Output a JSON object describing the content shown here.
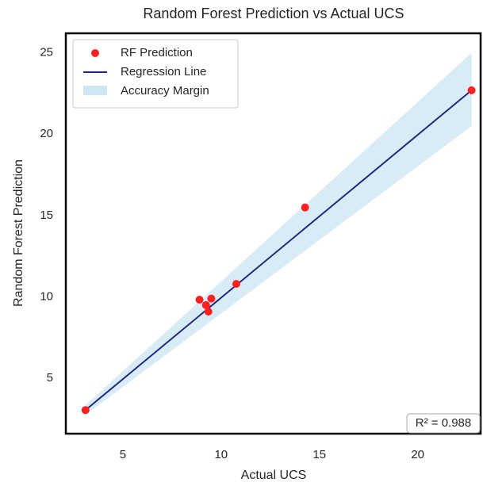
{
  "chart_data": {
    "type": "scatter",
    "title": "Random Forest Prediction vs Actual UCS",
    "xlabel": "Actual UCS",
    "ylabel": "Random Forest Prediction",
    "x": [
      3.1,
      8.9,
      9.23,
      9.35,
      9.5,
      10.77,
      14.27,
      22.74
    ],
    "series": [
      {
        "name": "RF Prediction",
        "color": "#ff2121",
        "values": [
          3.05,
          9.83,
          9.5,
          9.1,
          9.9,
          10.8,
          15.5,
          22.7
        ]
      }
    ],
    "regression": {
      "name": "Regression Line",
      "color": "#1f2a80",
      "x": [
        3.1,
        22.74
      ],
      "values": [
        3.05,
        22.7
      ]
    },
    "band": {
      "name": "Accuracy Margin",
      "color": "#cfe7f3",
      "x": [
        3.1,
        22.74
      ],
      "upper": [
        3.35,
        25.0
      ],
      "lower": [
        2.75,
        20.5
      ]
    },
    "xlim": [
      2.1,
      23.2
    ],
    "ylim": [
      1.6,
      26.2
    ],
    "xticks": [
      5,
      10,
      15,
      20
    ],
    "yticks": [
      5,
      10,
      15,
      20,
      25
    ],
    "annotation": "R² = 0.988",
    "legend": "upper left",
    "grid": false
  }
}
